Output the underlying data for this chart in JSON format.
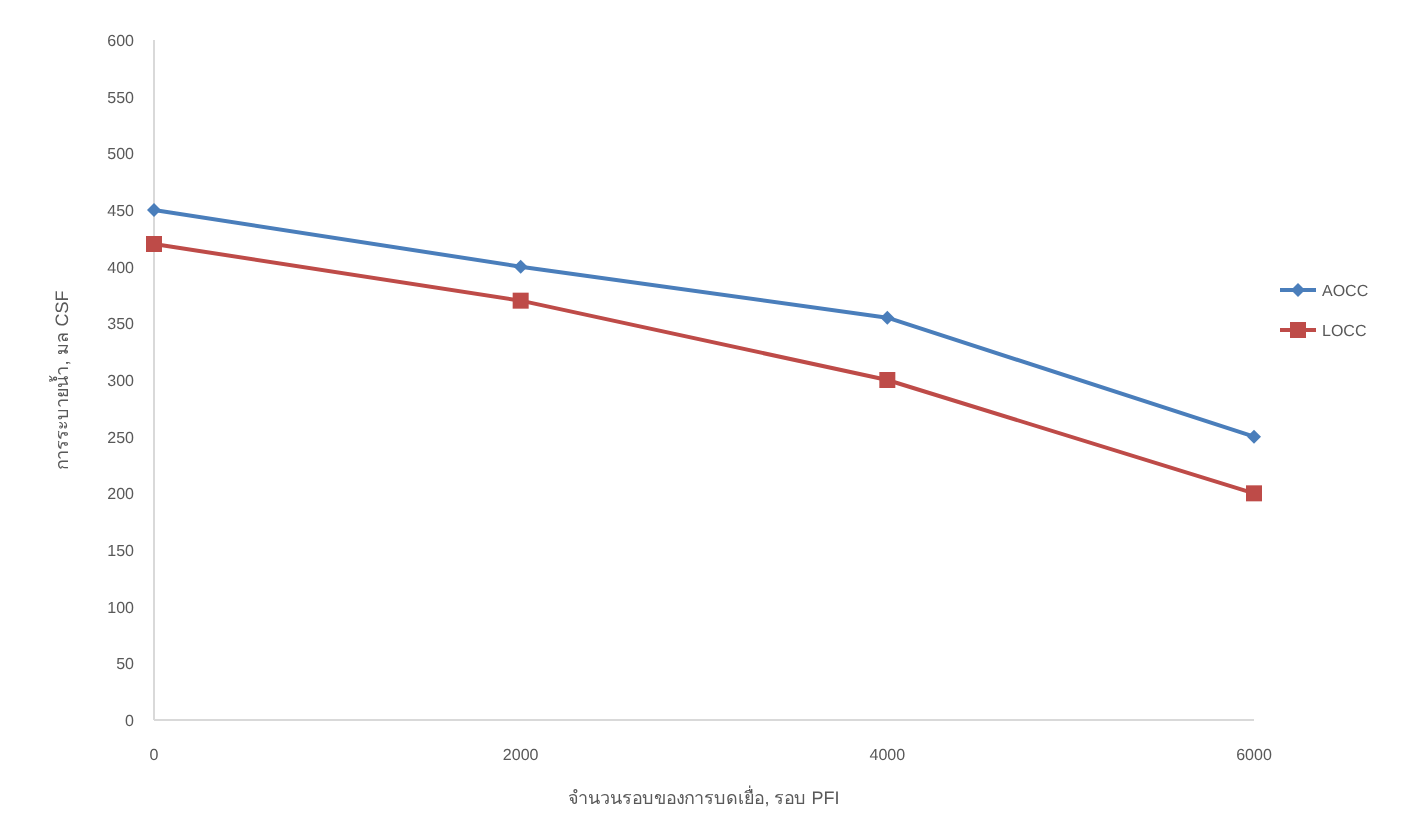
{
  "chart_data": {
    "type": "line",
    "xlabel": "จำนวนรอบของการบดเยื่อ, รอบ PFI",
    "ylabel": "การระบายน้ำ, มล CSF",
    "x": [
      0,
      2000,
      4000,
      6000
    ],
    "series": [
      {
        "name": "AOCC",
        "color": "#4a7ebb",
        "marker": "diamond",
        "values": [
          450,
          400,
          355,
          250
        ]
      },
      {
        "name": "LOCC",
        "color": "#be4b48",
        "marker": "square",
        "values": [
          420,
          370,
          300,
          200
        ]
      }
    ],
    "xlim": [
      0,
      6000
    ],
    "xticks": [
      0,
      2000,
      4000,
      6000
    ],
    "ylim": [
      0,
      600
    ],
    "yticks": [
      0,
      50,
      100,
      150,
      200,
      250,
      300,
      350,
      400,
      450,
      500,
      550,
      600
    ],
    "grid": false,
    "legend": "right"
  }
}
